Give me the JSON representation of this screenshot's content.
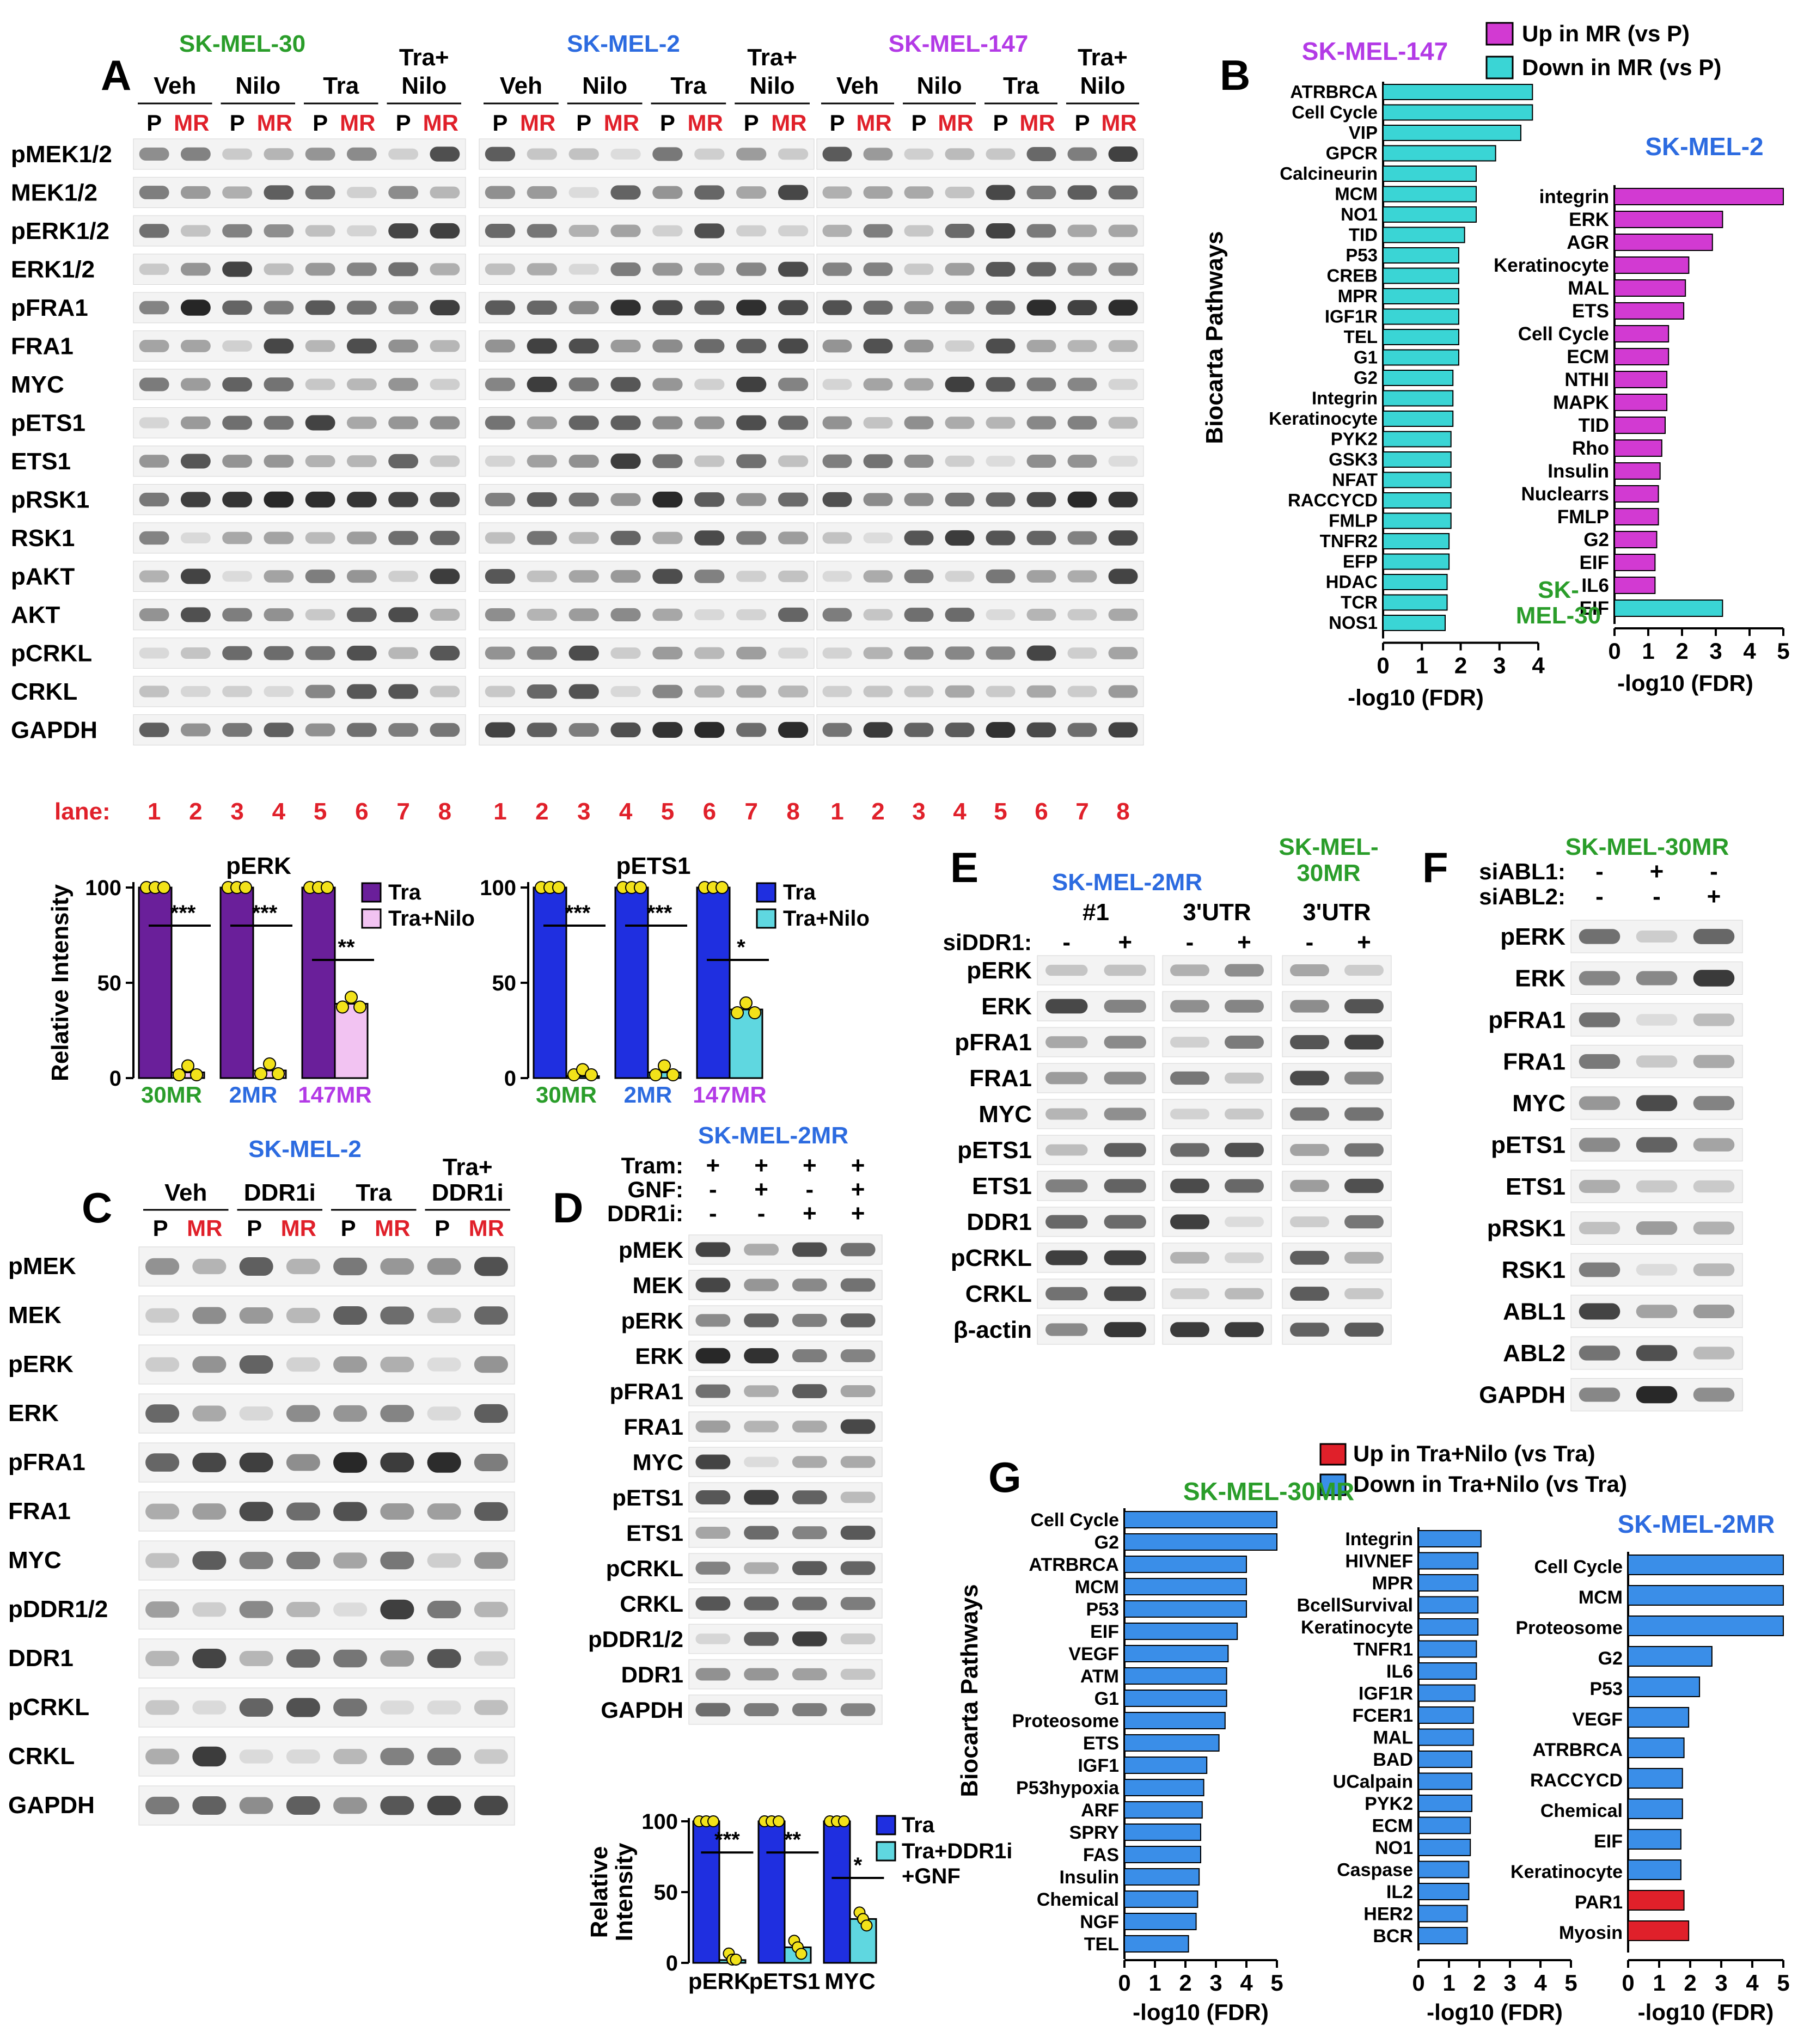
{
  "colors": {
    "green": "#2a9d2a",
    "blue": "#2c6be0",
    "purple": "#b33ae6",
    "red": "#e0202a",
    "magenta": "#d23ad2",
    "cyan": "#3ad5d5",
    "g_blue": "#3a8ee8",
    "g_red": "#e0202a",
    "tra_purple": "#6a1f9a",
    "trani_pink": "#f2c3f2",
    "tra_blue": "#1f2fe0",
    "trani_cyan": "#5fd7e0",
    "dot_yellow": "#f2e21a"
  },
  "panel_letters": [
    "A",
    "B",
    "C",
    "D",
    "E",
    "F",
    "G"
  ],
  "panel_a": {
    "cell_lines": [
      {
        "name": "SK-MEL-30",
        "color": "green"
      },
      {
        "name": "SK-MEL-2",
        "color": "blue"
      },
      {
        "name": "SK-MEL-147",
        "color": "purple"
      }
    ],
    "treatments": [
      "Veh",
      "Nilo",
      "Tra",
      "Tra+\nNilo"
    ],
    "treatment_lines": [
      [
        "Veh"
      ],
      [
        "Nilo"
      ],
      [
        "Tra"
      ],
      [
        "Tra+",
        "Nilo"
      ]
    ],
    "p_label": "P",
    "mr_label": "MR",
    "rows": [
      "pMEK1/2",
      "MEK1/2",
      "pERK1/2",
      "ERK1/2",
      "pFRA1",
      "FRA1",
      "MYC",
      "pETS1",
      "ETS1",
      "pRSK1",
      "RSK1",
      "pAKT",
      "AKT",
      "pCRKL",
      "CRKL",
      "GAPDH"
    ],
    "lane_label": "lane:",
    "lanes": [
      "1",
      "2",
      "3",
      "4",
      "5",
      "6",
      "7",
      "8"
    ]
  },
  "panel_a_quant": {
    "perk": {
      "title": "pERK",
      "ylabel": "Relative Intensity",
      "yticks": [
        "0",
        "50",
        "100"
      ],
      "groups": [
        {
          "label": "30MR",
          "color": "green",
          "tra": 100,
          "combo": 3,
          "sig": "***"
        },
        {
          "label": "2MR",
          "color": "blue",
          "tra": 100,
          "combo": 4,
          "sig": "***"
        },
        {
          "label": "147MR",
          "color": "purple",
          "tra": 100,
          "combo": 39,
          "sig": "**"
        }
      ],
      "legend": [
        "Tra",
        "Tra+Nilo"
      ]
    },
    "pets1": {
      "title": "pETS1",
      "yticks": [
        "0",
        "50",
        "100"
      ],
      "groups": [
        {
          "label": "30MR",
          "color": "green",
          "tra": 100,
          "combo": 1,
          "sig": "***"
        },
        {
          "label": "2MR",
          "color": "blue",
          "tra": 100,
          "combo": 3,
          "sig": "***"
        },
        {
          "label": "147MR",
          "color": "purple",
          "tra": 100,
          "combo": 36,
          "sig": "*"
        }
      ],
      "legend": [
        "Tra",
        "Tra+Nilo"
      ]
    }
  },
  "panel_b": {
    "ylabel": "Biocarta Pathways",
    "legend": [
      "Up in MR (vs P)",
      "Down in MR (vs P)"
    ],
    "left": {
      "title": "SK-MEL-147",
      "xlabel": "-log10 (FDR)",
      "xticks": [
        "0",
        "1",
        "2",
        "3",
        "4"
      ],
      "xmax": 4,
      "items": [
        {
          "label": "ATRBRCA",
          "value": 3.85,
          "dir": "down"
        },
        {
          "label": "Cell Cycle",
          "value": 3.85,
          "dir": "down"
        },
        {
          "label": "VIP",
          "value": 3.55,
          "dir": "down"
        },
        {
          "label": "GPCR",
          "value": 2.9,
          "dir": "down"
        },
        {
          "label": "Calcineurin",
          "value": 2.4,
          "dir": "down"
        },
        {
          "label": "MCM",
          "value": 2.4,
          "dir": "down"
        },
        {
          "label": "NO1",
          "value": 2.4,
          "dir": "down"
        },
        {
          "label": "TID",
          "value": 2.1,
          "dir": "down"
        },
        {
          "label": "P53",
          "value": 1.95,
          "dir": "down"
        },
        {
          "label": "CREB",
          "value": 1.95,
          "dir": "down"
        },
        {
          "label": "MPR",
          "value": 1.95,
          "dir": "down"
        },
        {
          "label": "IGF1R",
          "value": 1.95,
          "dir": "down"
        },
        {
          "label": "TEL",
          "value": 1.95,
          "dir": "down"
        },
        {
          "label": "G1",
          "value": 1.95,
          "dir": "down"
        },
        {
          "label": "G2",
          "value": 1.8,
          "dir": "down"
        },
        {
          "label": "Integrin",
          "value": 1.8,
          "dir": "down"
        },
        {
          "label": "Keratinocyte",
          "value": 1.8,
          "dir": "down"
        },
        {
          "label": "PYK2",
          "value": 1.75,
          "dir": "down"
        },
        {
          "label": "GSK3",
          "value": 1.75,
          "dir": "down"
        },
        {
          "label": "NFAT",
          "value": 1.75,
          "dir": "down"
        },
        {
          "label": "RACCYCD",
          "value": 1.75,
          "dir": "down"
        },
        {
          "label": "FMLP",
          "value": 1.75,
          "dir": "down"
        },
        {
          "label": "TNFR2",
          "value": 1.7,
          "dir": "down"
        },
        {
          "label": "EFP",
          "value": 1.7,
          "dir": "down"
        },
        {
          "label": "HDAC",
          "value": 1.65,
          "dir": "down"
        },
        {
          "label": "TCR",
          "value": 1.65,
          "dir": "down"
        },
        {
          "label": "NOS1",
          "value": 1.6,
          "dir": "down"
        }
      ]
    },
    "right": {
      "title": "SK-MEL-2",
      "title2a": "SK-",
      "title2b": "MEL-30",
      "xlabel": "-log10 (FDR)",
      "xticks": [
        "0",
        "1",
        "2",
        "3",
        "4",
        "5"
      ],
      "xmax": 5,
      "items": [
        {
          "label": "integrin",
          "value": 5.0,
          "dir": "up"
        },
        {
          "label": "ERK",
          "value": 3.2,
          "dir": "up"
        },
        {
          "label": "AGR",
          "value": 2.9,
          "dir": "up"
        },
        {
          "label": "Keratinocyte",
          "value": 2.2,
          "dir": "up"
        },
        {
          "label": "MAL",
          "value": 2.1,
          "dir": "up"
        },
        {
          "label": "ETS",
          "value": 2.05,
          "dir": "up"
        },
        {
          "label": "Cell Cycle",
          "value": 1.6,
          "dir": "up"
        },
        {
          "label": "ECM",
          "value": 1.6,
          "dir": "up"
        },
        {
          "label": "NTHI",
          "value": 1.55,
          "dir": "up"
        },
        {
          "label": "MAPK",
          "value": 1.55,
          "dir": "up"
        },
        {
          "label": "TID",
          "value": 1.5,
          "dir": "up"
        },
        {
          "label": "Rho",
          "value": 1.4,
          "dir": "up"
        },
        {
          "label": "Insulin",
          "value": 1.35,
          "dir": "up"
        },
        {
          "label": "Nuclearrs",
          "value": 1.3,
          "dir": "up"
        },
        {
          "label": "FMLP",
          "value": 1.3,
          "dir": "up"
        },
        {
          "label": "G2",
          "value": 1.25,
          "dir": "up"
        },
        {
          "label": "EIF",
          "value": 1.2,
          "dir": "up"
        },
        {
          "label": "IL6",
          "value": 1.2,
          "dir": "up"
        },
        {
          "label": "EIF",
          "value": 3.2,
          "dir": "down"
        }
      ]
    }
  },
  "panel_c": {
    "title": "SK-MEL-2",
    "treatments": [
      [
        "Veh"
      ],
      [
        "DDR1i"
      ],
      [
        "Tra"
      ],
      [
        "Tra+",
        "DDR1i"
      ]
    ],
    "p_label": "P",
    "mr_label": "MR",
    "rows": [
      "pMEK",
      "MEK",
      "pERK",
      "ERK",
      "pFRA1",
      "FRA1",
      "MYC",
      "pDDR1/2",
      "DDR1",
      "pCRKL",
      "CRKL",
      "GAPDH"
    ]
  },
  "panel_d": {
    "title": "SK-MEL-2MR",
    "conditions": [
      {
        "label": "Tram:",
        "signs": [
          "+",
          "+",
          "+",
          "+"
        ]
      },
      {
        "label": "GNF:",
        "signs": [
          "-",
          "+",
          "-",
          "+"
        ]
      },
      {
        "label": "DDR1i:",
        "signs": [
          "-",
          "-",
          "+",
          "+"
        ]
      }
    ],
    "rows": [
      "pMEK",
      "MEK",
      "pERK",
      "ERK",
      "pFRA1",
      "FRA1",
      "MYC",
      "pETS1",
      "ETS1",
      "pCRKL",
      "CRKL",
      "pDDR1/2",
      "DDR1",
      "GAPDH"
    ],
    "quant": {
      "ylabel": "Relative\nIntensity",
      "ylabel_lines": [
        "Relative",
        "Intensity"
      ],
      "yticks": [
        "0",
        "50",
        "100"
      ],
      "groups": [
        {
          "label": "pERK",
          "tra": 100,
          "combo": 2,
          "sig": "***"
        },
        {
          "label": "pETS1",
          "tra": 100,
          "combo": 11,
          "sig": "**"
        },
        {
          "label": "MYC",
          "tra": 100,
          "combo": 31,
          "sig": "*"
        }
      ],
      "legend": [
        "Tra",
        "Tra+DDR1i",
        "+GNF"
      ]
    }
  },
  "panel_e": {
    "title_a": "SK-MEL-2MR",
    "title_b1": "SK-MEL-",
    "title_b2": "30MR",
    "sirna": [
      "#1",
      "3'UTR",
      "3'UTR"
    ],
    "sidd_label": "siDDR1:",
    "signs": [
      "-",
      "+",
      "-",
      "+",
      "-",
      "+"
    ],
    "rows": [
      "pERK",
      "ERK",
      "pFRA1",
      "FRA1",
      "MYC",
      "pETS1",
      "ETS1",
      "DDR1",
      "pCRKL",
      "CRKL",
      "β-actin"
    ]
  },
  "panel_f": {
    "title": "SK-MEL-30MR",
    "conditions": [
      {
        "label": "siABL1:",
        "signs": [
          "-",
          "+",
          "-"
        ]
      },
      {
        "label": "siABL2:",
        "signs": [
          "-",
          "-",
          "+"
        ]
      }
    ],
    "rows": [
      "pERK",
      "ERK",
      "pFRA1",
      "FRA1",
      "MYC",
      "pETS1",
      "ETS1",
      "pRSK1",
      "RSK1",
      "ABL1",
      "ABL2",
      "GAPDH"
    ]
  },
  "panel_g": {
    "ylabel": "Biocarta Pathways",
    "legend": [
      "Up in Tra+Nilo (vs Tra)",
      "Down in Tra+Nilo (vs Tra)"
    ],
    "left_title": "SK-MEL-30MR",
    "right_title": "SK-MEL-2MR",
    "xlabel": "-log10 (FDR)",
    "xticks": [
      "0",
      "1",
      "2",
      "3",
      "4",
      "5"
    ],
    "col1": [
      {
        "label": "Cell Cycle",
        "value": 5.0,
        "dir": "down"
      },
      {
        "label": "G2",
        "value": 5.0,
        "dir": "down"
      },
      {
        "label": "ATRBRCA",
        "value": 4.0,
        "dir": "down"
      },
      {
        "label": "MCM",
        "value": 4.0,
        "dir": "down"
      },
      {
        "label": "P53",
        "value": 4.0,
        "dir": "down"
      },
      {
        "label": "EIF",
        "value": 3.7,
        "dir": "down"
      },
      {
        "label": "VEGF",
        "value": 3.4,
        "dir": "down"
      },
      {
        "label": "ATM",
        "value": 3.35,
        "dir": "down"
      },
      {
        "label": "G1",
        "value": 3.35,
        "dir": "down"
      },
      {
        "label": "Proteosome",
        "value": 3.3,
        "dir": "down"
      },
      {
        "label": "ETS",
        "value": 3.1,
        "dir": "down"
      },
      {
        "label": "IGF1",
        "value": 2.7,
        "dir": "down"
      },
      {
        "label": "P53hypoxia",
        "value": 2.6,
        "dir": "down"
      },
      {
        "label": "ARF",
        "value": 2.55,
        "dir": "down"
      },
      {
        "label": "SPRY",
        "value": 2.5,
        "dir": "down"
      },
      {
        "label": "FAS",
        "value": 2.5,
        "dir": "down"
      },
      {
        "label": "Insulin",
        "value": 2.45,
        "dir": "down"
      },
      {
        "label": "Chemical",
        "value": 2.4,
        "dir": "down"
      },
      {
        "label": "NGF",
        "value": 2.35,
        "dir": "down"
      },
      {
        "label": "TEL",
        "value": 2.1,
        "dir": "down"
      }
    ],
    "col2": [
      {
        "label": "Integrin",
        "value": 2.05,
        "dir": "down"
      },
      {
        "label": "HIVNEF",
        "value": 1.95,
        "dir": "down"
      },
      {
        "label": "MPR",
        "value": 1.95,
        "dir": "down"
      },
      {
        "label": "BcellSurvival",
        "value": 1.95,
        "dir": "down"
      },
      {
        "label": "Keratinocyte",
        "value": 1.95,
        "dir": "down"
      },
      {
        "label": "TNFR1",
        "value": 1.9,
        "dir": "down"
      },
      {
        "label": "IL6",
        "value": 1.9,
        "dir": "down"
      },
      {
        "label": "IGF1R",
        "value": 1.85,
        "dir": "down"
      },
      {
        "label": "FCER1",
        "value": 1.8,
        "dir": "down"
      },
      {
        "label": "MAL",
        "value": 1.8,
        "dir": "down"
      },
      {
        "label": "BAD",
        "value": 1.75,
        "dir": "down"
      },
      {
        "label": "UCalpain",
        "value": 1.75,
        "dir": "down"
      },
      {
        "label": "PYK2",
        "value": 1.75,
        "dir": "down"
      },
      {
        "label": "ECM",
        "value": 1.7,
        "dir": "down"
      },
      {
        "label": "NO1",
        "value": 1.7,
        "dir": "down"
      },
      {
        "label": "Caspase",
        "value": 1.65,
        "dir": "down"
      },
      {
        "label": "IL2",
        "value": 1.65,
        "dir": "down"
      },
      {
        "label": "HER2",
        "value": 1.6,
        "dir": "down"
      },
      {
        "label": "BCR",
        "value": 1.6,
        "dir": "down"
      }
    ],
    "col3": [
      {
        "label": "Cell Cycle",
        "value": 5.0,
        "dir": "down"
      },
      {
        "label": "MCM",
        "value": 5.0,
        "dir": "down"
      },
      {
        "label": "Proteosome",
        "value": 5.0,
        "dir": "down"
      },
      {
        "label": "G2",
        "value": 2.7,
        "dir": "down"
      },
      {
        "label": "P53",
        "value": 2.3,
        "dir": "down"
      },
      {
        "label": "VEGF",
        "value": 1.95,
        "dir": "down"
      },
      {
        "label": "ATRBRCA",
        "value": 1.8,
        "dir": "down"
      },
      {
        "label": "RACCYCD",
        "value": 1.75,
        "dir": "down"
      },
      {
        "label": "Chemical",
        "value": 1.75,
        "dir": "down"
      },
      {
        "label": "EIF",
        "value": 1.7,
        "dir": "down"
      },
      {
        "label": "Keratinocyte",
        "value": 1.7,
        "dir": "down"
      },
      {
        "label": "PAR1",
        "value": 1.8,
        "dir": "up"
      },
      {
        "label": "Myosin",
        "value": 1.95,
        "dir": "up"
      }
    ]
  }
}
